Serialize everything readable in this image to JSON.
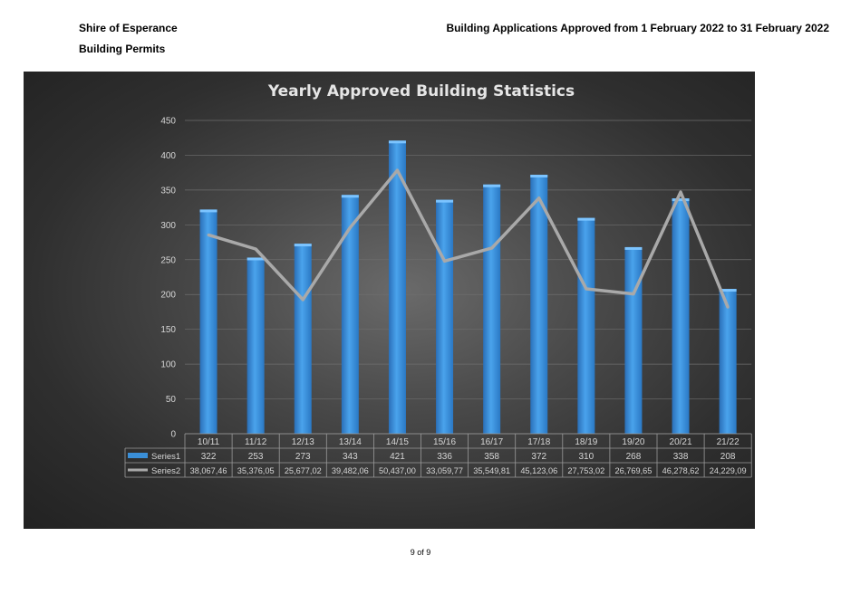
{
  "header": {
    "org": "Shire of Esperance",
    "section": "Building Permits",
    "period": "Building Applications  Approved from 1 February 2022 to 31 February 2022"
  },
  "footer": {
    "page": "9 of 9"
  },
  "colors": {
    "bar": "#3a8fd8",
    "line": "#a8a8a8",
    "panel": "#3a3a3a",
    "text": "#d8d8d8"
  },
  "chart_data": {
    "type": "bar",
    "title": "Yearly Approved Building Statistics",
    "categories": [
      "10/11",
      "11/12",
      "12/13",
      "13/14",
      "14/15",
      "15/16",
      "16/17",
      "17/18",
      "18/19",
      "19/20",
      "20/21",
      "21/22"
    ],
    "series": [
      {
        "name": "Series1",
        "type": "bar",
        "axis": "left",
        "values": [
          322,
          253,
          273,
          343,
          421,
          336,
          358,
          372,
          310,
          268,
          338,
          208
        ],
        "labels": [
          "322",
          "253",
          "273",
          "343",
          "421",
          "336",
          "358",
          "372",
          "310",
          "268",
          "338",
          "208"
        ]
      },
      {
        "name": "Series2",
        "type": "line",
        "axis": "right",
        "values": [
          38067460,
          35376050,
          25677020,
          39482060,
          50437000,
          33059770,
          35549810,
          45123060,
          27753020,
          26769650,
          46278620,
          24229090
        ],
        "labels": [
          "38,067,46",
          "35,376,05",
          "25,677,02",
          "39,482,06",
          "50,437,00",
          "33,059,77",
          "35,549,81",
          "45,123,06",
          "27,753,02",
          "26,769,65",
          "46,278,62",
          "24,229,09"
        ]
      }
    ],
    "y_left": {
      "range": [
        0,
        450
      ],
      "ticks": [
        "0",
        "50",
        "100",
        "150",
        "200",
        "250",
        "300",
        "350",
        "400",
        "450"
      ]
    },
    "y_right": {
      "range": [
        0,
        60000000
      ],
      "ticks": [
        "0",
        "10,000,000",
        "20,000,000",
        "30,000,000",
        "40,000,000",
        "50,000,000",
        "60,000,000"
      ]
    },
    "grid": true,
    "legend": "data-table"
  }
}
